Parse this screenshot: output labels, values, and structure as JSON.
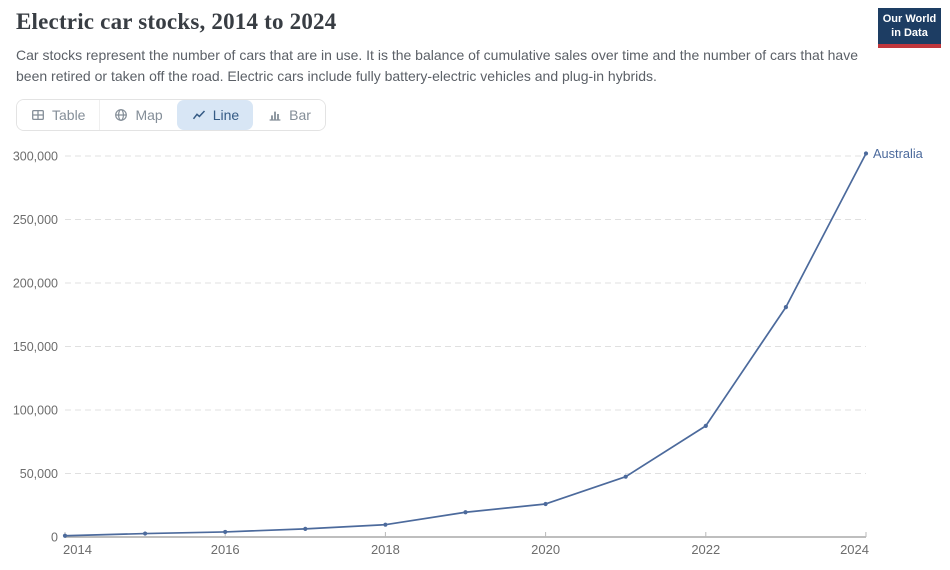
{
  "header": {
    "title": "Electric car stocks, 2014 to 2024",
    "subtitle": "Car stocks represent the number of cars that are in use. It is the balance of cumulative sales over time and the number of cars that have been retired or taken off the road. Electric cars include fully battery-electric vehicles and plug-in hybrids."
  },
  "logo": {
    "line1": "Our World",
    "line2": "in Data",
    "bg_color": "#1d3d63",
    "bar_color": "#c0363c"
  },
  "tabs": [
    {
      "label": "Table",
      "icon": "table-icon",
      "active": false
    },
    {
      "label": "Map",
      "icon": "globe-icon",
      "active": false
    },
    {
      "label": "Line",
      "icon": "line-chart-icon",
      "active": true
    },
    {
      "label": "Bar",
      "icon": "bar-chart-icon",
      "active": false
    }
  ],
  "chart_data": {
    "type": "line",
    "title": "Electric car stocks, 2014 to 2024",
    "x": [
      2014,
      2015,
      2016,
      2017,
      2018,
      2019,
      2020,
      2021,
      2022,
      2023,
      2024
    ],
    "series": [
      {
        "name": "Australia",
        "color": "#4c6a9c",
        "values": [
          1000,
          2700,
          4000,
          6400,
          9700,
          19500,
          26000,
          47500,
          87500,
          181000,
          302000
        ]
      }
    ],
    "xlim": [
      2014,
      2024
    ],
    "ylim": [
      0,
      300000
    ],
    "xticks": [
      2014,
      2016,
      2018,
      2020,
      2022,
      2024
    ],
    "yticks": [
      0,
      50000,
      100000,
      150000,
      200000,
      250000,
      300000
    ],
    "grid": "horizontal-dashed",
    "legend_position": "end-of-line",
    "axis_colors": {
      "grid": "#e0e0e0",
      "axis_line": "#a9a9a9",
      "tick": "#b9b9b9",
      "tick_label": "#6d6d6d"
    }
  }
}
